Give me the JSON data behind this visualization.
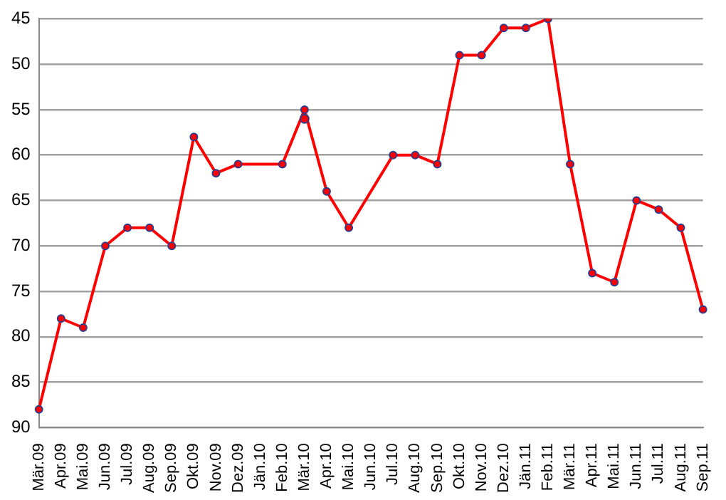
{
  "chart_data": {
    "type": "line",
    "categories": [
      "Mär.09",
      "Apr.09",
      "Mai.09",
      "Jun.09",
      "Jul.09",
      "Aug.09",
      "Sep.09",
      "Okt.09",
      "Nov.09",
      "Dez.09",
      "Jän.10",
      "Feb.10",
      "Mär.10",
      "Apr.10",
      "Mai.10",
      "Jun.10",
      "Jul.10",
      "Aug.10",
      "Sep.10",
      "Okt.10",
      "Nov.10",
      "Dez.10",
      "Jän.11",
      "Feb.11",
      "Mär.11",
      "Apr.11",
      "Mai.11",
      "Jun.11",
      "Jul.11",
      "Aug.11",
      "Sep.11"
    ],
    "series": [
      {
        "color": "#ff0000",
        "values": [
          88,
          78,
          79,
          70,
          68,
          68,
          70,
          58,
          62,
          61,
          null,
          61,
          55,
          64,
          68,
          null,
          60,
          60,
          61,
          49,
          49,
          46,
          46,
          45,
          61,
          73,
          74,
          65,
          66,
          68,
          77
        ]
      },
      {
        "type": "scatter",
        "color": "#ff0000",
        "x": [
          "Mär.10"
        ],
        "values": [
          56
        ]
      }
    ],
    "ylim": [
      90,
      45
    ],
    "yticks": [
      45,
      50,
      55,
      60,
      65,
      70,
      75,
      80,
      85,
      90
    ],
    "grid": "y",
    "legend": false,
    "marker": "circle",
    "line_style": "solid"
  }
}
